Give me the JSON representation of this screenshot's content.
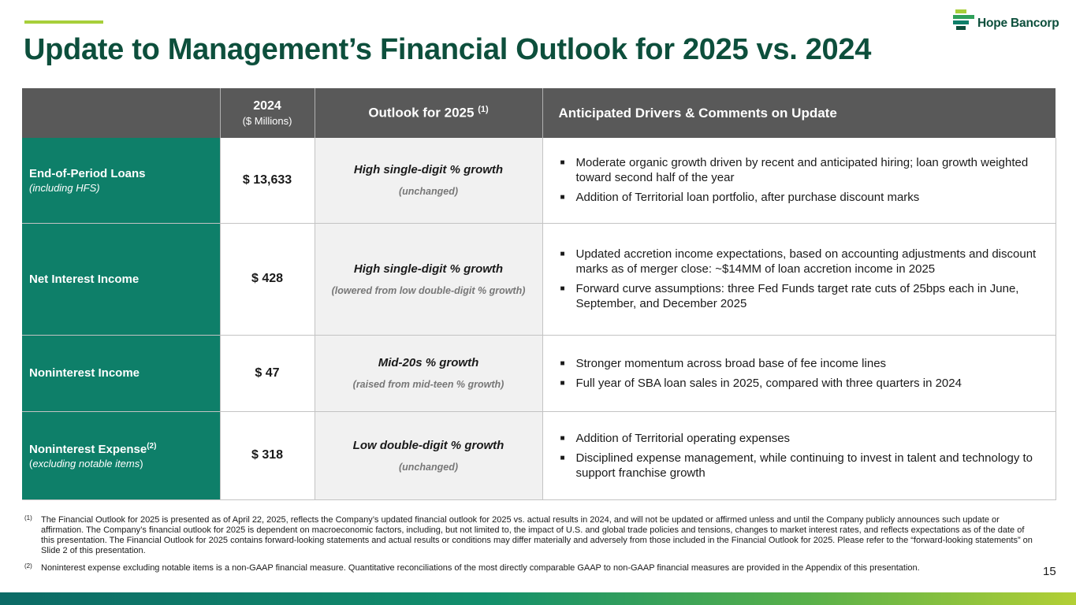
{
  "slide": {
    "title": "Update to Management’s Financial Outlook for 2025 vs. 2024",
    "page_number": "15",
    "brand_name": "Hope Bancorp",
    "colors": {
      "dark_green": "#0d4f3c",
      "teal": "#0e7f69",
      "lime": "#a7cf3a",
      "header_gray": "#595959"
    }
  },
  "table": {
    "headers": {
      "year": "2024",
      "year_unit": "($ Millions)",
      "outlook": "Outlook for 2025",
      "outlook_note": "(1)",
      "comments": "Anticipated Drivers & Comments on Update"
    },
    "rows": [
      {
        "metric": "End-of-Period Loans",
        "sub": "(including HFS)",
        "value": "$ 13,633",
        "outlook": "High single-digit % growth",
        "change": "(unchanged)",
        "comments": [
          "Moderate organic growth driven by recent and anticipated hiring; loan growth weighted toward second half of the year",
          "Addition of Territorial loan portfolio, after purchase discount marks"
        ]
      },
      {
        "metric": "Net Interest Income",
        "sub": "",
        "value": "$ 428",
        "outlook": "High single-digit % growth",
        "change": "(lowered from low double-digit % growth)",
        "comments": [
          "Updated accretion income expectations, based on accounting adjustments and discount marks as of merger close: ~$14MM of loan accretion income in 2025",
          "Forward curve assumptions: three Fed Funds target rate cuts of 25bps each in June, September, and December 2025"
        ]
      },
      {
        "metric": "Noninterest Income",
        "sub": "",
        "value": "$ 47",
        "outlook": "Mid-20s % growth",
        "change": "(raised from mid-teen % growth)",
        "comments": [
          "Stronger momentum across broad base of fee income lines",
          "Full year of SBA loan sales in 2025, compared with three quarters in 2024"
        ]
      },
      {
        "metric": "Noninterest Expense",
        "metric_note": "(2)",
        "sub_prefix": "(",
        "sub_italic": "excluding notable items",
        "sub_suffix": ")",
        "value": "$ 318",
        "outlook": "Low double-digit % growth",
        "change": "(unchanged)",
        "comments": [
          "Addition of Territorial operating expenses",
          "Disciplined expense management, while continuing to invest in talent and technology to support franchise growth"
        ]
      }
    ]
  },
  "footnotes": [
    {
      "mark": "(1)",
      "text": "The Financial Outlook for 2025 is presented as of April 22, 2025, reflects the Company’s updated financial outlook for 2025 vs. actual results in 2024, and will not be updated or affirmed unless and until the Company publicly announces such update or affirmation. The Company’s financial outlook for 2025 is dependent on macroeconomic factors, including, but not limited to, the impact of U.S. and global trade policies and tensions, changes to market interest rates, and reflects expectations as of the date of this presentation. The Financial Outlook for 2025 contains forward-looking statements and actual results or conditions may differ materially and adversely from those included in the Financial Outlook for 2025. Please refer to the “forward-looking statements” on Slide 2 of this presentation."
    },
    {
      "mark": "(2)",
      "text": "Noninterest expense excluding notable items is a non-GAAP financial measure. Quantitative reconciliations of the most directly comparable GAAP to non-GAAP financial measures are provided in the Appendix of this presentation."
    }
  ]
}
